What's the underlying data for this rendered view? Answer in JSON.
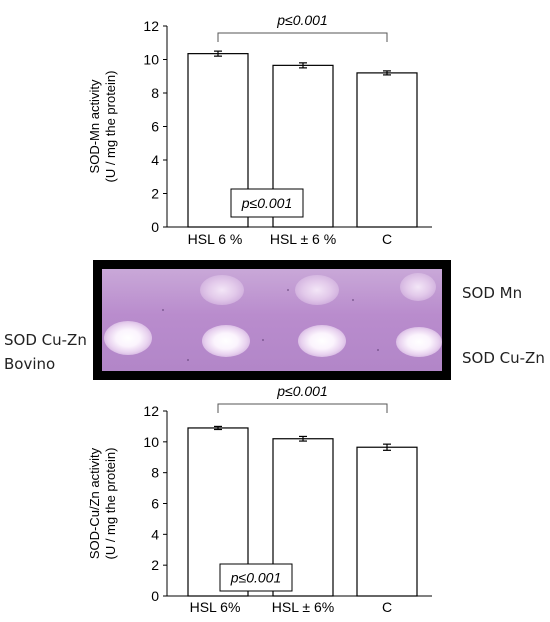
{
  "chart_data": [
    {
      "type": "bar",
      "categories": [
        "HSL 6 %",
        "HSL ± 6 %",
        "C"
      ],
      "values": [
        10.35,
        9.65,
        9.2
      ],
      "errors": [
        0.15,
        0.15,
        0.12
      ],
      "ylabel_line1": "SOD-Mn activity",
      "ylabel_line2": "(U / mg the protein)",
      "ylim": [
        0,
        12
      ],
      "yticks": [
        "0",
        "2",
        "4",
        "6",
        "8",
        "10",
        "12"
      ],
      "annotation_top": "p≤0.001",
      "annotation_box": "p≤0.001",
      "bar_fill": "#ffffff",
      "bar_stroke": "#000000",
      "grid": false
    },
    {
      "type": "bar",
      "categories": [
        "HSL 6%",
        "HSL ± 6%",
        "C"
      ],
      "values": [
        10.9,
        10.2,
        9.65
      ],
      "errors": [
        0.1,
        0.15,
        0.2
      ],
      "ylabel_line1": "SOD-Cu/Zn activity",
      "ylabel_line2": "(U / mg the protein)",
      "ylim": [
        0,
        12
      ],
      "yticks": [
        "0",
        "2",
        "4",
        "6",
        "8",
        "10",
        "12"
      ],
      "annotation_top": "p≤0.001",
      "annotation_box": "p≤0.001",
      "bar_fill": "#ffffff",
      "bar_stroke": "#000000",
      "grid": false
    }
  ],
  "gel": {
    "left_label_line1": "SOD Cu-Zn",
    "left_label_line2": "Bovino",
    "right_label_top": "SOD Mn",
    "right_label_bottom": "SOD Cu-Zn",
    "lane_color": "#b98ccd"
  }
}
